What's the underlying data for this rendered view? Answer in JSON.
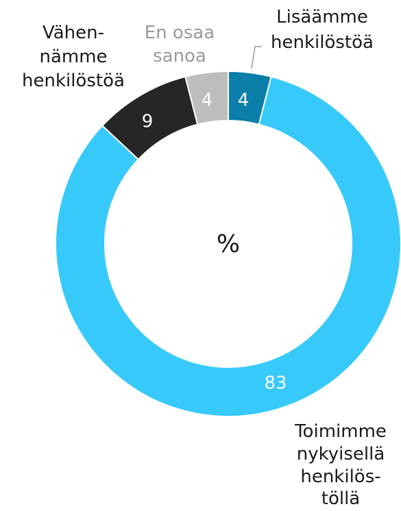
{
  "chart_data": {
    "type": "donut",
    "center_label": "%",
    "categories": [
      "Lisäämme\nhenkilöstöä",
      "Toimimme\nnykyisellä\nhenkilös-\ntöllä",
      "Vähen-\nnämme\nhenkilöstöä",
      "En osaa\nsanoa"
    ],
    "values": [
      4,
      83,
      9,
      4
    ],
    "colors": [
      "#0b7fa9",
      "#38c9fb",
      "#262626",
      "#bdbdbd"
    ],
    "label_colors": [
      "#1a1a1a",
      "#1a1a1a",
      "#1a1a1a",
      "#9a9a9a"
    ]
  }
}
